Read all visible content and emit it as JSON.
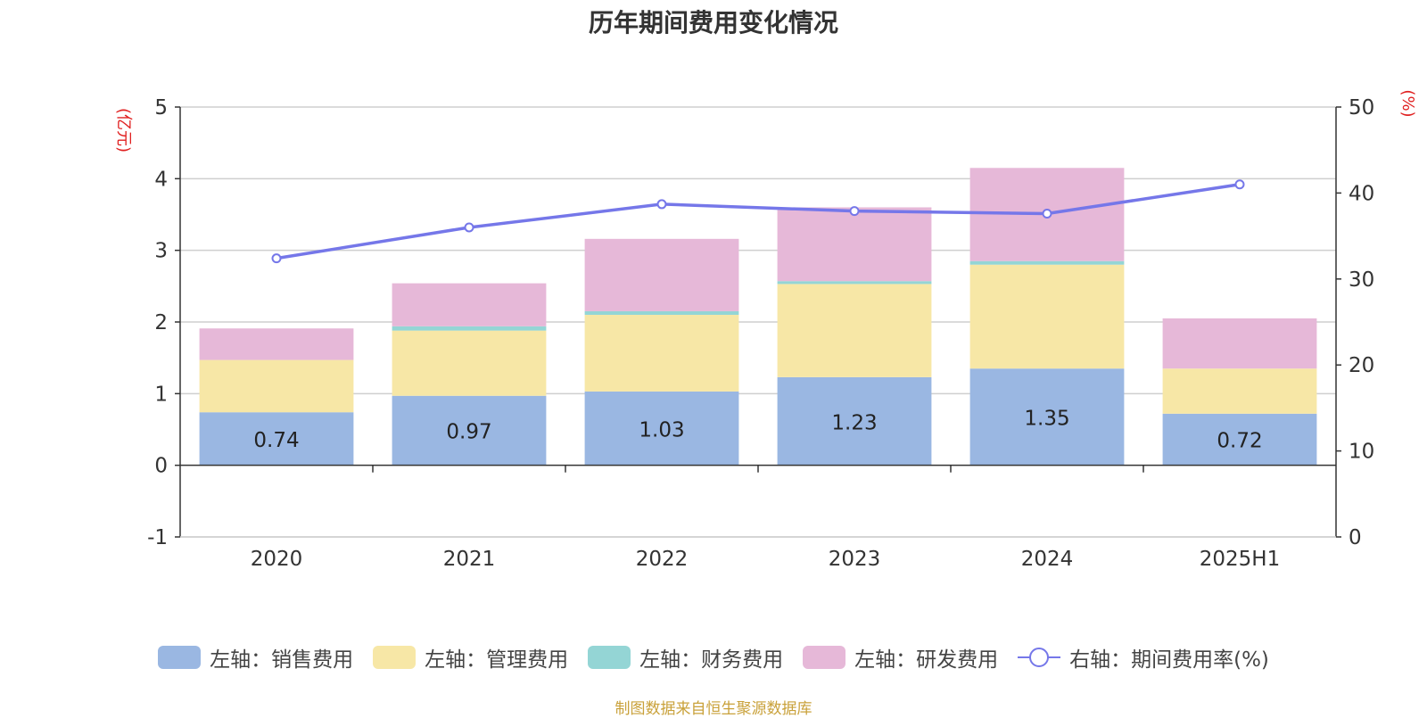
{
  "chart_data": {
    "type": "bar",
    "title": "历年期间费用变化情况",
    "categories": [
      "2020",
      "2021",
      "2022",
      "2023",
      "2024",
      "2025H1"
    ],
    "left_axis": {
      "unit_label": "(亿元)",
      "ylim": [
        -1,
        5
      ],
      "ticks": [
        "5",
        "4",
        "3",
        "2",
        "1",
        "0",
        "-1"
      ]
    },
    "right_axis": {
      "unit_label": "(%)",
      "ylim": [
        0,
        50
      ],
      "ticks": [
        "50",
        "40",
        "30",
        "20",
        "10",
        "0"
      ]
    },
    "stacked_series": [
      {
        "name": "左轴：销售费用",
        "color": "#9ab7e2",
        "values": [
          0.74,
          0.97,
          1.03,
          1.23,
          1.35,
          0.72
        ],
        "data_labels": [
          "0.74",
          "0.97",
          "1.03",
          "1.23",
          "1.35",
          "0.72"
        ]
      },
      {
        "name": "左轴：管理费用",
        "color": "#f7e7a6",
        "values": [
          0.73,
          0.91,
          1.07,
          1.3,
          1.45,
          0.63
        ]
      },
      {
        "name": "左轴：财务费用",
        "color": "#94d5d5",
        "values": [
          0.0,
          0.06,
          0.05,
          0.04,
          0.05,
          0.0
        ]
      },
      {
        "name": "左轴：研发费用",
        "color": "#e6b8d8",
        "values": [
          0.44,
          0.6,
          1.01,
          1.03,
          1.3,
          0.7
        ]
      }
    ],
    "line_series": {
      "name": "右轴：期间费用率(%)",
      "color": "#7577e9",
      "values": [
        32.4,
        36.0,
        38.7,
        37.9,
        37.6,
        41.0
      ]
    },
    "grid": true,
    "legend_position": "bottom"
  },
  "source_note": "制图数据来自恒生聚源数据库"
}
